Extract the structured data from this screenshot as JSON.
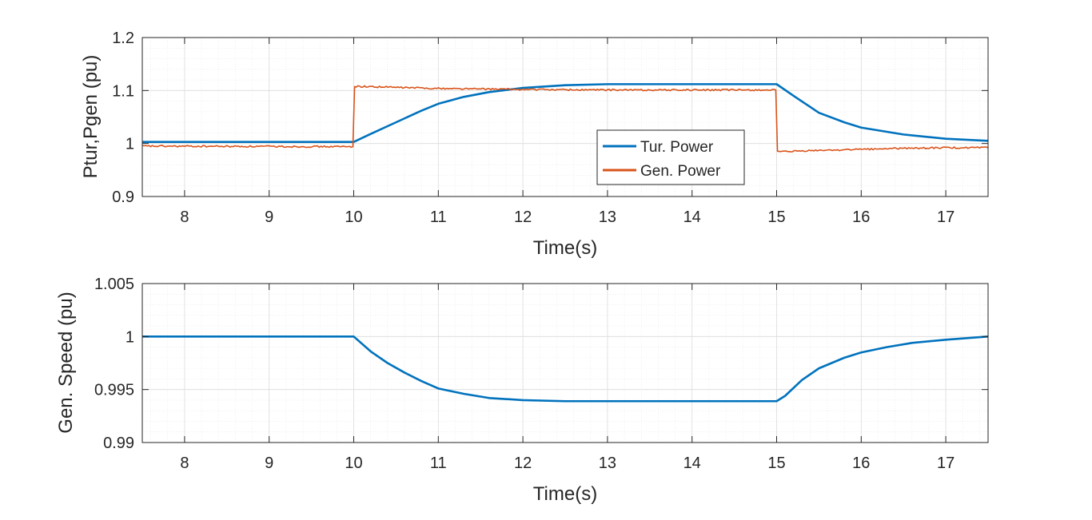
{
  "colors": {
    "tur_power": "#0072BD",
    "gen_power": "#D95319",
    "speed": "#0072BD",
    "axis": "#262626",
    "grid": "#DCDCDC"
  },
  "chart_data": [
    {
      "type": "line",
      "title": "",
      "xlabel": "Time(s)",
      "ylabel": "Ptur,Pgen (pu)",
      "xlim": [
        7.5,
        17.5
      ],
      "ylim": [
        0.9,
        1.2
      ],
      "xticks": [
        8,
        9,
        10,
        11,
        12,
        13,
        14,
        15,
        16,
        17
      ],
      "xtick_labels": [
        "8",
        "9",
        "10",
        "11",
        "12",
        "13",
        "14",
        "15",
        "16",
        "17"
      ],
      "yticks": [
        0.9,
        1.0,
        1.1,
        1.2
      ],
      "ytick_labels": [
        "0.9",
        "1",
        "1.1",
        "1.2"
      ],
      "grid": true,
      "minor_grid": true,
      "legend": {
        "placement": "inside-lower-center-right",
        "entries": [
          "Tur. Power",
          "Gen. Power"
        ]
      },
      "series": [
        {
          "name": "Tur. Power",
          "x": [
            7.5,
            10.0,
            10.2,
            10.5,
            10.8,
            11.0,
            11.3,
            11.6,
            12.0,
            12.5,
            13.0,
            14.0,
            15.0,
            15.2,
            15.5,
            15.8,
            16.0,
            16.5,
            17.0,
            17.5
          ],
          "y": [
            1.003,
            1.003,
            1.018,
            1.04,
            1.062,
            1.075,
            1.088,
            1.097,
            1.105,
            1.11,
            1.112,
            1.112,
            1.112,
            1.09,
            1.058,
            1.04,
            1.03,
            1.017,
            1.009,
            1.005
          ]
        },
        {
          "name": "Gen. Power",
          "x": [
            7.5,
            9.99,
            10.01,
            10.5,
            11.0,
            11.5,
            12.0,
            13.0,
            14.0,
            14.99,
            15.01,
            15.5,
            16.0,
            16.5,
            17.0,
            17.5
          ],
          "y": [
            0.995,
            0.994,
            1.108,
            1.106,
            1.104,
            1.103,
            1.102,
            1.101,
            1.101,
            1.101,
            0.984,
            0.987,
            0.989,
            0.991,
            0.992,
            0.992
          ]
        }
      ]
    },
    {
      "type": "line",
      "title": "",
      "xlabel": "Time(s)",
      "ylabel": "Gen. Speed (pu)",
      "xlim": [
        7.5,
        17.5
      ],
      "ylim": [
        0.99,
        1.005
      ],
      "xticks": [
        8,
        9,
        10,
        11,
        12,
        13,
        14,
        15,
        16,
        17
      ],
      "xtick_labels": [
        "8",
        "9",
        "10",
        "11",
        "12",
        "13",
        "14",
        "15",
        "16",
        "17"
      ],
      "yticks": [
        0.99,
        0.995,
        1.0,
        1.005
      ],
      "ytick_labels": [
        "0.99",
        "0.995",
        "1",
        "1.005"
      ],
      "grid": true,
      "minor_grid": true,
      "series": [
        {
          "x": [
            7.5,
            10.0,
            10.2,
            10.4,
            10.6,
            10.8,
            11.0,
            11.3,
            11.6,
            12.0,
            12.5,
            13.0,
            14.0,
            15.0,
            15.1,
            15.3,
            15.5,
            15.8,
            16.0,
            16.3,
            16.6,
            17.0,
            17.5
          ],
          "y": [
            1.0,
            1.0,
            0.9986,
            0.9975,
            0.9966,
            0.9958,
            0.9951,
            0.9946,
            0.9942,
            0.994,
            0.9939,
            0.9939,
            0.9939,
            0.9939,
            0.9944,
            0.9959,
            0.997,
            0.998,
            0.9985,
            0.999,
            0.9994,
            0.9997,
            1.0
          ]
        }
      ]
    }
  ]
}
